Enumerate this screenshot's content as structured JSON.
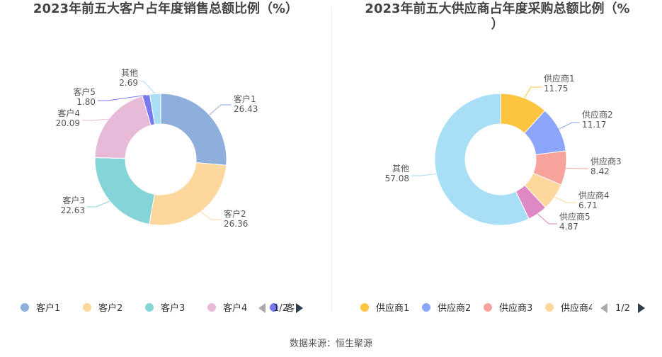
{
  "chart_data": [
    {
      "type": "pie",
      "title": "2023年前五大客户占年度销售总额比例（%）",
      "categories": [
        "客户1",
        "客户2",
        "客户3",
        "客户4",
        "客户5",
        "其他"
      ],
      "values": [
        26.43,
        26.36,
        22.63,
        20.09,
        1.8,
        2.69
      ],
      "value_labels": [
        "26.43",
        "26.36",
        "22.63",
        "20.09",
        "1.80",
        "2.69"
      ],
      "colors": [
        "#8eaedb",
        "#fdd79b",
        "#84d4d8",
        "#e8bad9",
        "#7a78ee",
        "#a9dff6"
      ],
      "legend_visible": [
        "客户1",
        "客户2",
        "客户3",
        "客户4",
        "客"
      ],
      "legend_position": "bottom",
      "legend_page": "1/2"
    },
    {
      "type": "pie",
      "title_line1": "2023年前五大供应商占年度采购总额比例（%",
      "title_line2": "）",
      "categories": [
        "供应商1",
        "供应商2",
        "供应商3",
        "供应商4",
        "供应商5",
        "其他"
      ],
      "values": [
        11.75,
        11.17,
        8.42,
        6.71,
        4.87,
        57.08
      ],
      "value_labels": [
        "11.75",
        "11.17",
        "8.42",
        "6.71",
        "4.87",
        "57.08"
      ],
      "colors": [
        "#fdc43f",
        "#8aa5f9",
        "#f7a29a",
        "#fdd79b",
        "#de88c5",
        "#a9dff6"
      ],
      "legend_visible": [
        "供应商1",
        "供应商2",
        "供应商3",
        "供应商4"
      ],
      "legend_position": "bottom",
      "legend_page": "1/2"
    }
  ],
  "source": "数据来源：恒生聚源"
}
